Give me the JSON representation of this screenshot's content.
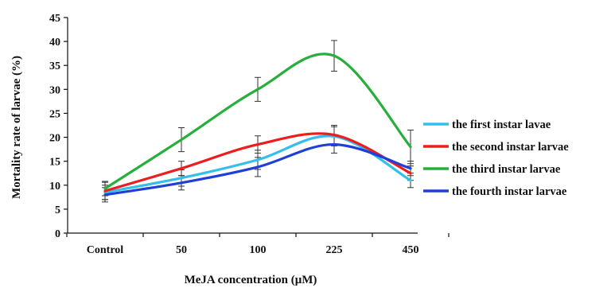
{
  "chart_data": {
    "type": "line",
    "title": "",
    "xlabel": "MeJA concentration  (μM)",
    "ylabel": "Mortality  rate of larvae  (%)",
    "categories": [
      "Control",
      "50",
      "100",
      "225",
      "450"
    ],
    "ylim": [
      0,
      45
    ],
    "yticks": [
      0,
      5,
      10,
      15,
      20,
      25,
      30,
      35,
      40,
      45
    ],
    "grid": false,
    "legend_position": "right",
    "smooth": true,
    "error_bars": true,
    "series": [
      {
        "name": "the first instar lavae",
        "color": "#33bfea",
        "values": [
          8.5,
          11.5,
          15.3,
          20.2,
          11.0
        ],
        "errors": [
          1.5,
          1.7,
          2.0,
          2.0,
          1.5
        ]
      },
      {
        "name": "the second instar larvae",
        "color": "#ee1c1c",
        "values": [
          8.8,
          13.5,
          18.5,
          20.5,
          12.5
        ],
        "errors": [
          1.8,
          1.5,
          1.8,
          2.0,
          1.5
        ]
      },
      {
        "name": "the third instar larvae",
        "color": "#27ae3c",
        "values": [
          9.3,
          19.5,
          30.0,
          37.0,
          18.0
        ],
        "errors": [
          1.5,
          2.5,
          2.5,
          3.2,
          3.5
        ]
      },
      {
        "name": "the fourth instar larvae",
        "color": "#1f3fd6",
        "values": [
          8.0,
          10.5,
          13.8,
          18.5,
          13.5
        ],
        "errors": [
          1.5,
          1.5,
          2.0,
          1.8,
          1.5
        ]
      }
    ]
  }
}
